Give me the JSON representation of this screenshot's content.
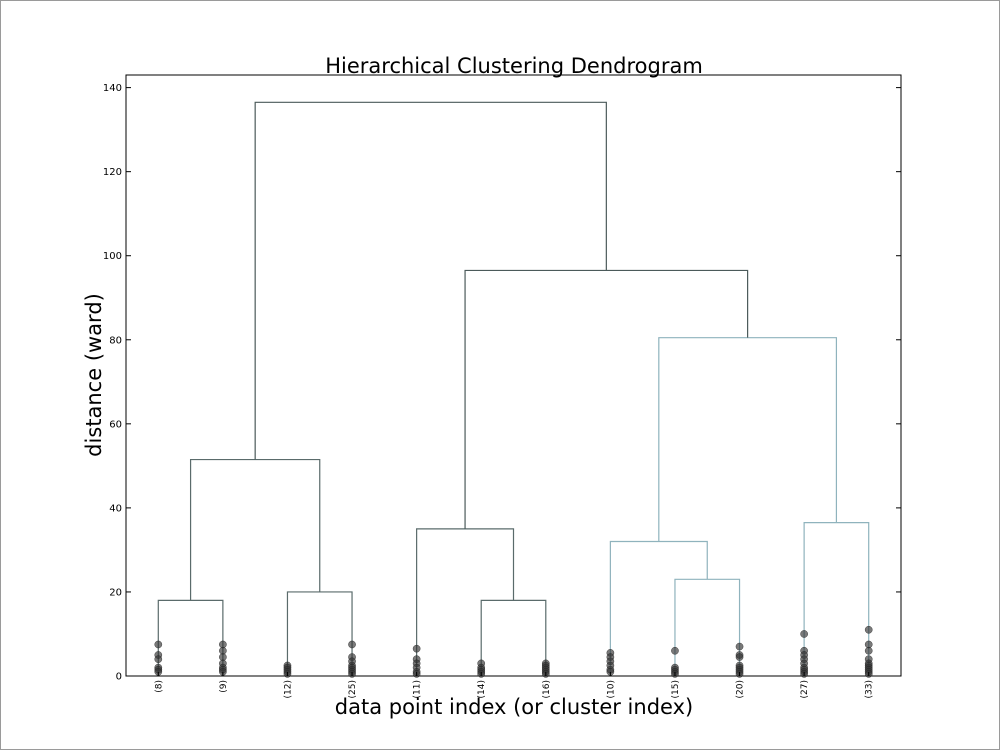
{
  "chart_data": {
    "type": "dendrogram",
    "title": "Hierarchical Clustering Dendrogram",
    "xlabel": "data point index (or cluster index)",
    "ylabel": "distance (ward)",
    "ylim": [
      0,
      143
    ],
    "yticks": [
      0,
      20,
      40,
      60,
      80,
      100,
      120,
      140
    ],
    "grid": false,
    "leaves": [
      "(8)",
      "(9)",
      "(12)",
      "(25)",
      "(11)",
      "(14)",
      "(16)",
      "(10)",
      "(15)",
      "(20)",
      "(27)",
      "(33)"
    ],
    "colors": {
      "upper": "#4b5a5a",
      "cluster_left": "#5a6b6b",
      "cluster_right": "#8fb3bd",
      "points": "#333333"
    },
    "links": [
      {
        "left": "leaf:0",
        "right": "leaf:1",
        "height": 18,
        "color": "cluster_left"
      },
      {
        "left": "leaf:2",
        "right": "leaf:3",
        "height": 20,
        "color": "cluster_left"
      },
      {
        "left": "link:0",
        "right": "link:1",
        "height": 51.5,
        "color": "cluster_left"
      },
      {
        "left": "leaf:5",
        "right": "leaf:6",
        "height": 18,
        "color": "cluster_left"
      },
      {
        "left": "leaf:4",
        "right": "link:3",
        "height": 35,
        "color": "cluster_left"
      },
      {
        "left": "leaf:8",
        "right": "leaf:9",
        "height": 23,
        "color": "cluster_right"
      },
      {
        "left": "leaf:7",
        "right": "link:5",
        "height": 32,
        "color": "cluster_right"
      },
      {
        "left": "leaf:10",
        "right": "leaf:11",
        "height": 36.5,
        "color": "cluster_right"
      },
      {
        "left": "link:6",
        "right": "link:7",
        "height": 80.5,
        "color": "cluster_right"
      },
      {
        "left": "link:4",
        "right": "link:8",
        "height": 96.5,
        "color": "upper"
      },
      {
        "left": "link:2",
        "right": "link:9",
        "height": 136.5,
        "color": "upper"
      }
    ],
    "leaf_points": [
      [
        7.5,
        5,
        4,
        2,
        1.5,
        1
      ],
      [
        7.5,
        6,
        4.5,
        3,
        2,
        1.5,
        1
      ],
      [
        2.5,
        2,
        1.5,
        1,
        0.5
      ],
      [
        7.5,
        4.5,
        3.5,
        2.5,
        2,
        1.5,
        1,
        0.5
      ],
      [
        6.5,
        4,
        3,
        2,
        1,
        0.5
      ],
      [
        3,
        2,
        1.5,
        1,
        0.5
      ],
      [
        3,
        2.5,
        2,
        1.5,
        1,
        0.5
      ],
      [
        5.5,
        4.5,
        3.5,
        2.5,
        1.5,
        1
      ],
      [
        6,
        2,
        1.5,
        1,
        0.5
      ],
      [
        7,
        5,
        4.5,
        2.5,
        2,
        1.5,
        1,
        0.5
      ],
      [
        10,
        6,
        5,
        4,
        3,
        2,
        1.5,
        1,
        0.5
      ],
      [
        11,
        7.5,
        6,
        4,
        3,
        2.5,
        2,
        1.5,
        1,
        0.5
      ]
    ]
  }
}
